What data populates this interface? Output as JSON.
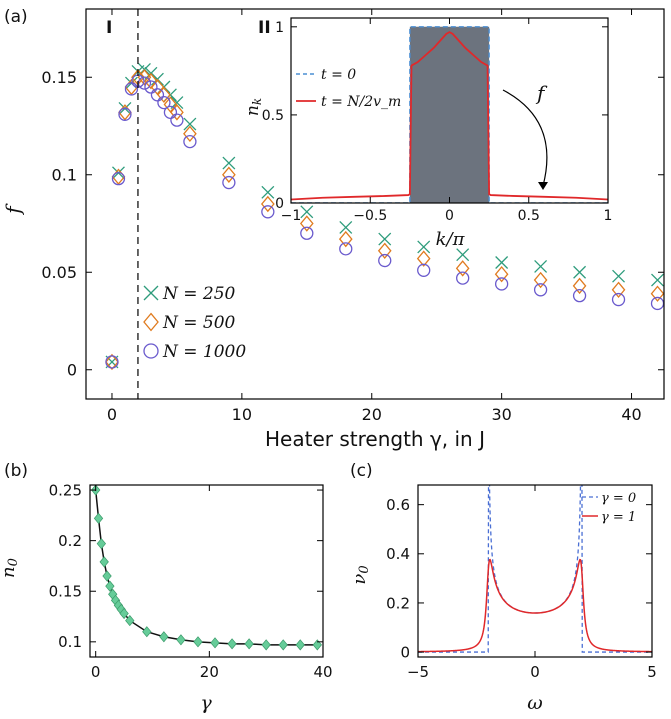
{
  "chart_data": [
    {
      "panel_label": "(a)",
      "type": "scatter",
      "xlabel": "Heater strength γ, in J",
      "ylabel": "f",
      "xlim": [
        -2,
        42.5
      ],
      "ylim": [
        -0.015,
        0.185
      ],
      "xticks": [
        0,
        10,
        20,
        30,
        40
      ],
      "yticks": [
        0,
        0.05,
        0.1,
        0.15
      ],
      "ytick_labels": [
        "0",
        "0.05",
        "0.1",
        "0.15"
      ],
      "legend_position": "bottom-left",
      "region_labels": [
        "I",
        "II"
      ],
      "vline_x": 2,
      "series": [
        {
          "name": "N = 250",
          "marker": "x",
          "color": "#2e9c7c",
          "x": [
            0,
            0.5,
            1,
            1.5,
            2,
            2.5,
            3,
            3.5,
            4,
            4.5,
            5,
            6,
            9,
            12,
            15,
            18,
            21,
            24,
            27,
            30,
            33,
            36,
            39,
            42
          ],
          "y": [
            0.004,
            0.101,
            0.134,
            0.147,
            0.153,
            0.154,
            0.152,
            0.149,
            0.145,
            0.141,
            0.137,
            0.126,
            0.106,
            0.091,
            0.081,
            0.073,
            0.067,
            0.063,
            0.059,
            0.055,
            0.053,
            0.05,
            0.048,
            0.046
          ]
        },
        {
          "name": "N = 500",
          "marker": "diamond",
          "color": "#e07b1f",
          "x": [
            0,
            0.5,
            1,
            1.5,
            2,
            2.5,
            3,
            3.5,
            4,
            4.5,
            5,
            6,
            9,
            12,
            15,
            18,
            21,
            24,
            27,
            30,
            33,
            36,
            39,
            42
          ],
          "y": [
            0.004,
            0.099,
            0.132,
            0.145,
            0.15,
            0.15,
            0.148,
            0.145,
            0.141,
            0.136,
            0.132,
            0.121,
            0.1,
            0.085,
            0.075,
            0.067,
            0.061,
            0.057,
            0.052,
            0.049,
            0.046,
            0.043,
            0.041,
            0.039
          ]
        },
        {
          "name": "N = 1000",
          "marker": "circle",
          "color": "#6a5acd",
          "x": [
            0,
            0.5,
            1,
            1.5,
            2,
            2.5,
            3,
            3.5,
            4,
            4.5,
            5,
            6,
            9,
            12,
            15,
            18,
            21,
            24,
            27,
            30,
            33,
            36,
            39,
            42
          ],
          "y": [
            0.004,
            0.098,
            0.131,
            0.144,
            0.148,
            0.147,
            0.145,
            0.141,
            0.137,
            0.132,
            0.128,
            0.117,
            0.096,
            0.081,
            0.07,
            0.062,
            0.056,
            0.051,
            0.047,
            0.044,
            0.041,
            0.038,
            0.036,
            0.034
          ]
        }
      ],
      "inset": {
        "type": "area",
        "xlabel": "k/π",
        "ylabel": "n_k",
        "xlim": [
          -1,
          1
        ],
        "ylim": [
          0,
          1.05
        ],
        "xticks": [
          -1,
          -0.5,
          0,
          0.5,
          1
        ],
        "xtick_labels": [
          "−1",
          "−0.5",
          "0",
          "0.5",
          "1"
        ],
        "yticks": [
          0,
          0.5,
          1
        ],
        "annotation": "f",
        "series": [
          {
            "name": "t = 0",
            "style": "dashed",
            "color": "#4a8fd4",
            "x": [
              -1,
              -0.25,
              -0.25,
              0.25,
              0.25,
              1
            ],
            "y": [
              0,
              0,
              1,
              1,
              0,
              0
            ]
          },
          {
            "name": "t = N/2v_m",
            "style": "solid",
            "color": "#e0282a",
            "x": [
              -1,
              -0.8,
              -0.6,
              -0.4,
              -0.26,
              -0.25,
              -0.24,
              -0.2,
              -0.15,
              -0.1,
              -0.05,
              -0.02,
              0,
              0.02,
              0.05,
              0.1,
              0.15,
              0.2,
              0.24,
              0.25,
              0.26,
              0.4,
              0.6,
              0.8,
              1
            ],
            "y": [
              0.02,
              0.03,
              0.035,
              0.04,
              0.045,
              0.05,
              0.78,
              0.8,
              0.84,
              0.88,
              0.93,
              0.96,
              0.97,
              0.96,
              0.93,
              0.88,
              0.84,
              0.8,
              0.78,
              0.05,
              0.045,
              0.04,
              0.035,
              0.03,
              0.02
            ]
          }
        ]
      }
    },
    {
      "panel_label": "(b)",
      "type": "line",
      "xlabel": "γ",
      "ylabel": "n_0",
      "xlim": [
        -1,
        40
      ],
      "ylim": [
        0.085,
        0.255
      ],
      "xticks": [
        0,
        20,
        40
      ],
      "yticks": [
        0.1,
        0.15,
        0.2,
        0.25
      ],
      "ytick_labels": [
        "0.1",
        "0.15",
        "0.2",
        "0.25"
      ],
      "series": [
        {
          "color": "#66cc99",
          "x": [
            0,
            0.5,
            1,
            1.5,
            2,
            2.5,
            3,
            3.5,
            4,
            4.5,
            5,
            6,
            9,
            12,
            15,
            18,
            21,
            24,
            27,
            30,
            33,
            36,
            39
          ],
          "y": [
            0.25,
            0.222,
            0.197,
            0.179,
            0.165,
            0.155,
            0.147,
            0.141,
            0.136,
            0.132,
            0.128,
            0.121,
            0.11,
            0.105,
            0.102,
            0.1,
            0.099,
            0.098,
            0.098,
            0.097,
            0.097,
            0.097,
            0.097
          ]
        }
      ]
    },
    {
      "panel_label": "(c)",
      "type": "line",
      "xlabel": "ω",
      "ylabel": "ν_0",
      "xlim": [
        -5,
        5
      ],
      "ylim": [
        -0.02,
        0.68
      ],
      "xticks": [
        -5,
        0,
        5
      ],
      "xtick_labels": [
        "−5",
        "0",
        "5"
      ],
      "yticks": [
        0,
        0.2,
        0.4,
        0.6
      ],
      "ytick_labels": [
        "0",
        "0.2",
        "0.4",
        "0.6"
      ],
      "legend_position": "top-right",
      "series": [
        {
          "name": "γ = 0",
          "style": "dashed",
          "color": "#4a6fd4"
        },
        {
          "name": "γ = 1",
          "style": "solid",
          "color": "#e0282a"
        }
      ]
    }
  ]
}
